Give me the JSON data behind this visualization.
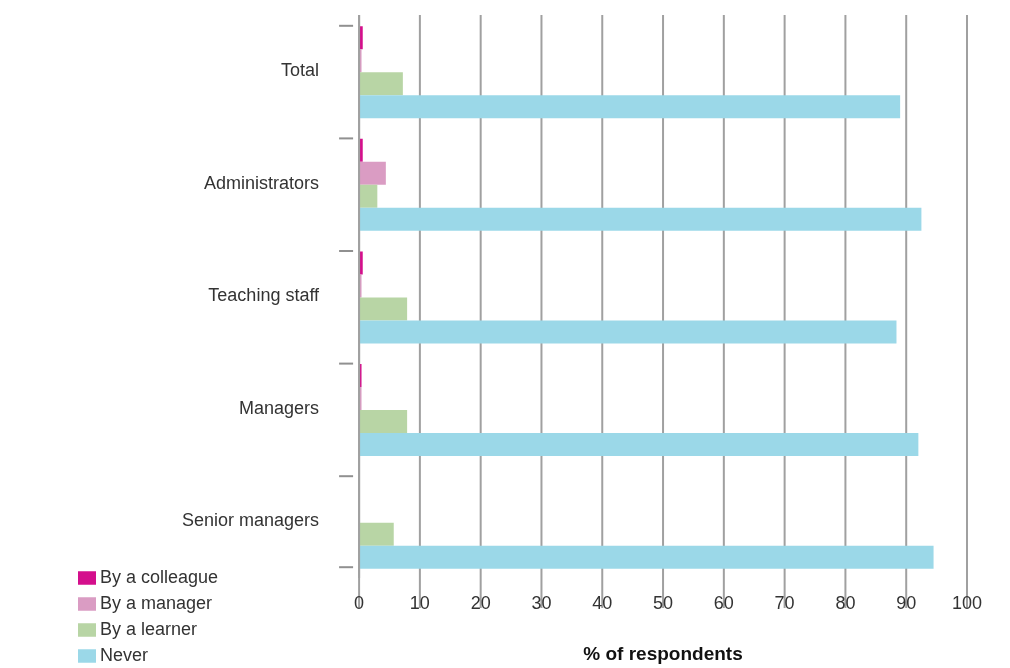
{
  "chart_data": {
    "type": "bar",
    "orientation": "horizontal",
    "xlabel": "% of respondents",
    "categories": [
      "Total",
      "Administrators",
      "Teaching staff",
      "Managers",
      "Senior managers"
    ],
    "series": [
      {
        "name": "By a colleague",
        "color": "#d40f8c",
        "values": [
          0.6,
          0.6,
          0.6,
          0.4,
          0
        ]
      },
      {
        "name": "By a manager",
        "color": "#da9cc3",
        "values": [
          0.4,
          4.4,
          0.4,
          0.4,
          0
        ]
      },
      {
        "name": "By a learner",
        "color": "#b8d5a5",
        "values": [
          7.2,
          3.0,
          7.9,
          7.9,
          5.7
        ]
      },
      {
        "name": "Never",
        "color": "#9bd8e8",
        "values": [
          89.0,
          92.5,
          88.4,
          92.0,
          94.5
        ]
      }
    ],
    "xlim": [
      0,
      100
    ],
    "xticks": [
      0,
      10,
      20,
      30,
      40,
      50,
      60,
      70,
      80,
      90,
      100
    ],
    "grid": "x",
    "legend": "bottom left"
  }
}
